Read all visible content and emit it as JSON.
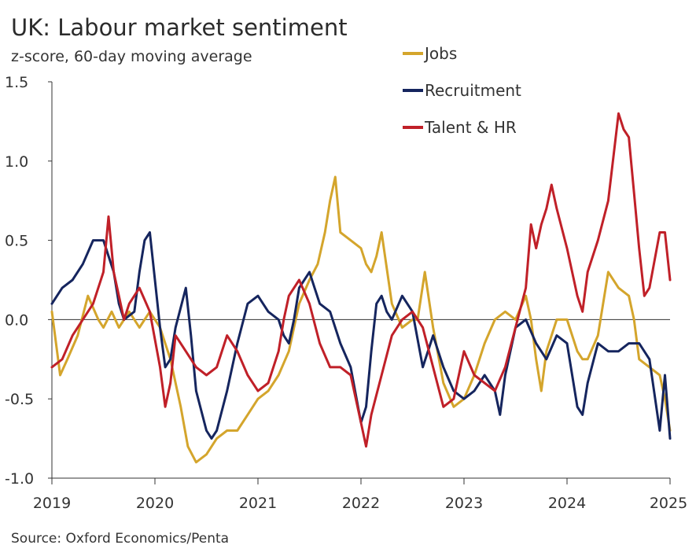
{
  "chart_data": {
    "type": "line",
    "title": "UK: Labour market sentiment",
    "subtitle": "z-score, 60-day moving average",
    "source": "Source: Oxford Economics/Penta",
    "ylim": [
      -1.0,
      1.5
    ],
    "y_ticks": [
      "1.5",
      "1.0",
      "0.5",
      "0.0",
      "-0.5",
      "-1.0"
    ],
    "y_tick_values": [
      1.5,
      1.0,
      0.5,
      0.0,
      -0.5,
      -1.0
    ],
    "xlim": [
      2019.0,
      2025.0
    ],
    "x_ticks": [
      "2019",
      "2020",
      "2021",
      "2022",
      "2023",
      "2024",
      "2025"
    ],
    "x_tick_values": [
      2019,
      2020,
      2021,
      2022,
      2023,
      2024,
      2025
    ],
    "grid": false,
    "legend_position": "top-right",
    "series": [
      {
        "name": "Jobs",
        "color": "#D4A52C",
        "x": [
          2019.0,
          2019.08,
          2019.15,
          2019.25,
          2019.35,
          2019.45,
          2019.5,
          2019.58,
          2019.65,
          2019.75,
          2019.85,
          2019.95,
          2020.05,
          2020.15,
          2020.25,
          2020.32,
          2020.4,
          2020.5,
          2020.6,
          2020.7,
          2020.8,
          2020.9,
          2021.0,
          2021.1,
          2021.2,
          2021.3,
          2021.4,
          2021.5,
          2021.58,
          2021.65,
          2021.7,
          2021.75,
          2021.8,
          2021.9,
          2022.0,
          2022.05,
          2022.1,
          2022.15,
          2022.2,
          2022.3,
          2022.4,
          2022.5,
          2022.55,
          2022.62,
          2022.7,
          2022.8,
          2022.9,
          2023.0,
          2023.1,
          2023.2,
          2023.3,
          2023.4,
          2023.5,
          2023.6,
          2023.65,
          2023.7,
          2023.75,
          2023.8,
          2023.9,
          2024.0,
          2024.1,
          2024.15,
          2024.2,
          2024.3,
          2024.4,
          2024.5,
          2024.6,
          2024.65,
          2024.7,
          2024.8,
          2024.9,
          2024.95,
          2025.0
        ],
        "values": [
          0.05,
          -0.35,
          -0.25,
          -0.1,
          0.15,
          0.0,
          -0.05,
          0.05,
          -0.05,
          0.05,
          -0.05,
          0.05,
          -0.05,
          -0.25,
          -0.55,
          -0.8,
          -0.9,
          -0.85,
          -0.75,
          -0.7,
          -0.7,
          -0.6,
          -0.5,
          -0.45,
          -0.35,
          -0.2,
          0.1,
          0.25,
          0.35,
          0.55,
          0.75,
          0.9,
          0.55,
          0.5,
          0.45,
          0.35,
          0.3,
          0.4,
          0.55,
          0.1,
          -0.05,
          0.0,
          0.0,
          0.3,
          -0.05,
          -0.4,
          -0.55,
          -0.5,
          -0.35,
          -0.15,
          0.0,
          0.05,
          0.0,
          0.15,
          0.0,
          -0.25,
          -0.45,
          -0.2,
          0.0,
          0.0,
          -0.2,
          -0.25,
          -0.25,
          -0.1,
          0.3,
          0.2,
          0.15,
          0.0,
          -0.25,
          -0.3,
          -0.35,
          -0.5,
          -0.7
        ]
      },
      {
        "name": "Recruitment",
        "color": "#15255E",
        "x": [
          2019.0,
          2019.05,
          2019.1,
          2019.2,
          2019.3,
          2019.4,
          2019.5,
          2019.6,
          2019.65,
          2019.7,
          2019.8,
          2019.85,
          2019.9,
          2019.95,
          2020.0,
          2020.05,
          2020.1,
          2020.15,
          2020.2,
          2020.3,
          2020.35,
          2020.4,
          2020.5,
          2020.55,
          2020.6,
          2020.7,
          2020.8,
          2020.9,
          2021.0,
          2021.1,
          2021.2,
          2021.25,
          2021.3,
          2021.35,
          2021.4,
          2021.5,
          2021.55,
          2021.6,
          2021.7,
          2021.8,
          2021.9,
          2022.0,
          2022.05,
          2022.1,
          2022.15,
          2022.2,
          2022.25,
          2022.3,
          2022.4,
          2022.5,
          2022.6,
          2022.7,
          2022.8,
          2022.9,
          2023.0,
          2023.1,
          2023.2,
          2023.3,
          2023.35,
          2023.4,
          2023.5,
          2023.6,
          2023.7,
          2023.8,
          2023.9,
          2024.0,
          2024.1,
          2024.15,
          2024.2,
          2024.3,
          2024.4,
          2024.5,
          2024.6,
          2024.7,
          2024.8,
          2024.9,
          2024.95,
          2025.0
        ],
        "values": [
          0.1,
          0.15,
          0.2,
          0.25,
          0.35,
          0.5,
          0.5,
          0.3,
          0.1,
          0.0,
          0.05,
          0.3,
          0.5,
          0.55,
          0.25,
          -0.05,
          -0.3,
          -0.25,
          -0.05,
          0.2,
          -0.1,
          -0.45,
          -0.7,
          -0.75,
          -0.7,
          -0.45,
          -0.15,
          0.1,
          0.15,
          0.05,
          0.0,
          -0.1,
          -0.15,
          0.0,
          0.2,
          0.3,
          0.2,
          0.1,
          0.05,
          -0.15,
          -0.3,
          -0.65,
          -0.55,
          -0.2,
          0.1,
          0.15,
          0.05,
          0.0,
          0.15,
          0.05,
          -0.3,
          -0.1,
          -0.3,
          -0.45,
          -0.5,
          -0.45,
          -0.35,
          -0.45,
          -0.6,
          -0.35,
          -0.05,
          0.0,
          -0.15,
          -0.25,
          -0.1,
          -0.15,
          -0.55,
          -0.6,
          -0.4,
          -0.15,
          -0.2,
          -0.2,
          -0.15,
          -0.15,
          -0.25,
          -0.7,
          -0.35,
          -0.75
        ]
      },
      {
        "name": "Talent & HR",
        "color": "#C02028",
        "x": [
          2019.0,
          2019.1,
          2019.2,
          2019.3,
          2019.4,
          2019.5,
          2019.55,
          2019.6,
          2019.65,
          2019.7,
          2019.75,
          2019.85,
          2019.95,
          2020.05,
          2020.1,
          2020.15,
          2020.2,
          2020.3,
          2020.4,
          2020.5,
          2020.6,
          2020.7,
          2020.8,
          2020.9,
          2021.0,
          2021.1,
          2021.2,
          2021.25,
          2021.3,
          2021.4,
          2021.5,
          2021.6,
          2021.7,
          2021.8,
          2021.9,
          2022.0,
          2022.05,
          2022.1,
          2022.2,
          2022.3,
          2022.4,
          2022.5,
          2022.6,
          2022.7,
          2022.8,
          2022.9,
          2023.0,
          2023.1,
          2023.2,
          2023.3,
          2023.4,
          2023.5,
          2023.6,
          2023.65,
          2023.7,
          2023.75,
          2023.8,
          2023.85,
          2023.9,
          2024.0,
          2024.1,
          2024.15,
          2024.2,
          2024.3,
          2024.4,
          2024.5,
          2024.55,
          2024.6,
          2024.65,
          2024.7,
          2024.75,
          2024.8,
          2024.9,
          2024.95,
          2025.0
        ],
        "values": [
          -0.3,
          -0.25,
          -0.1,
          0.0,
          0.1,
          0.3,
          0.65,
          0.3,
          0.15,
          0.0,
          0.1,
          0.2,
          0.05,
          -0.3,
          -0.55,
          -0.4,
          -0.1,
          -0.2,
          -0.3,
          -0.35,
          -0.3,
          -0.1,
          -0.2,
          -0.35,
          -0.45,
          -0.4,
          -0.2,
          0.0,
          0.15,
          0.25,
          0.1,
          -0.15,
          -0.3,
          -0.3,
          -0.35,
          -0.65,
          -0.8,
          -0.6,
          -0.35,
          -0.1,
          0.0,
          0.05,
          -0.05,
          -0.3,
          -0.55,
          -0.5,
          -0.2,
          -0.35,
          -0.4,
          -0.45,
          -0.3,
          -0.05,
          0.2,
          0.6,
          0.45,
          0.6,
          0.7,
          0.85,
          0.7,
          0.45,
          0.15,
          0.05,
          0.3,
          0.5,
          0.75,
          1.3,
          1.2,
          1.15,
          0.8,
          0.45,
          0.15,
          0.2,
          0.55,
          0.55,
          0.25
        ]
      }
    ]
  }
}
